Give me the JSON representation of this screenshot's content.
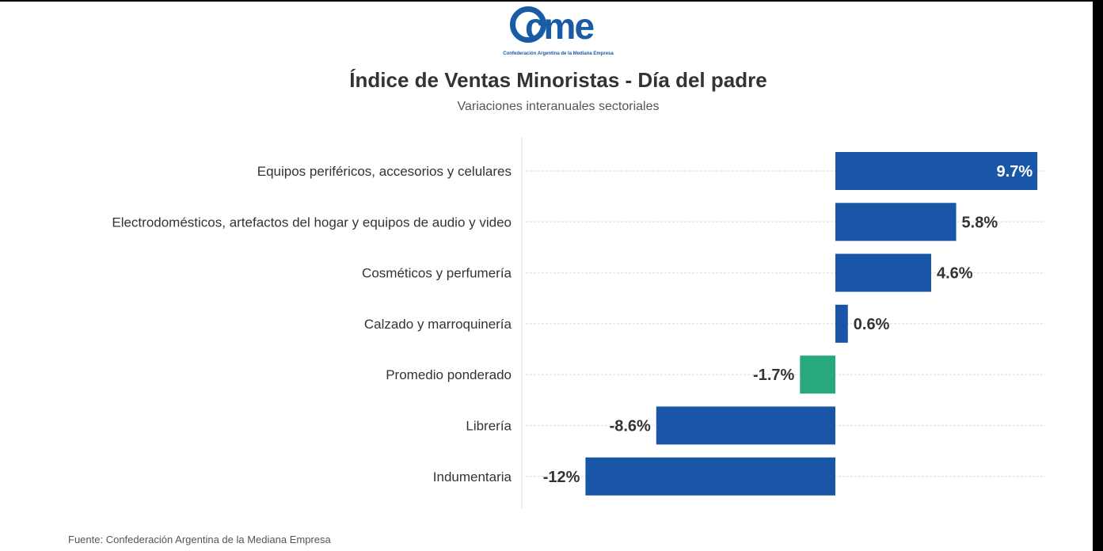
{
  "logo": {
    "wordmark": "cme",
    "subtitle": "Confederación Argentina de la Mediana Empresa"
  },
  "colors": {
    "bar": "#1a56a7",
    "highlight": "#27a97b",
    "label": "#333333",
    "value_inside": "#ffffff",
    "grid": "#e6e6e6"
  },
  "chart_data": {
    "type": "bar",
    "orientation": "horizontal",
    "title": "Índice de Ventas Minoristas - Día del padre",
    "subtitle": "Variaciones interanuales sectoriales",
    "xlabel": "",
    "ylabel": "",
    "xlim": [
      -12,
      9.7
    ],
    "categories": [
      "Equipos periféricos, accesorios y celulares",
      "Electrodomésticos, artefactos del hogar y equipos de audio y video",
      "Cosméticos y perfumería",
      "Calzado y marroquinería",
      "Promedio ponderado",
      "Librería",
      "Indumentaria"
    ],
    "values": [
      9.7,
      5.8,
      4.6,
      0.6,
      -1.7,
      -8.6,
      -12
    ],
    "value_labels": [
      "9.7%",
      "5.8%",
      "4.6%",
      "0.6%",
      "-1.7%",
      "-8.6%",
      "-12%"
    ],
    "highlight": "Promedio ponderado"
  },
  "source": "Fuente: Confederación Argentina de la Mediana Empresa"
}
